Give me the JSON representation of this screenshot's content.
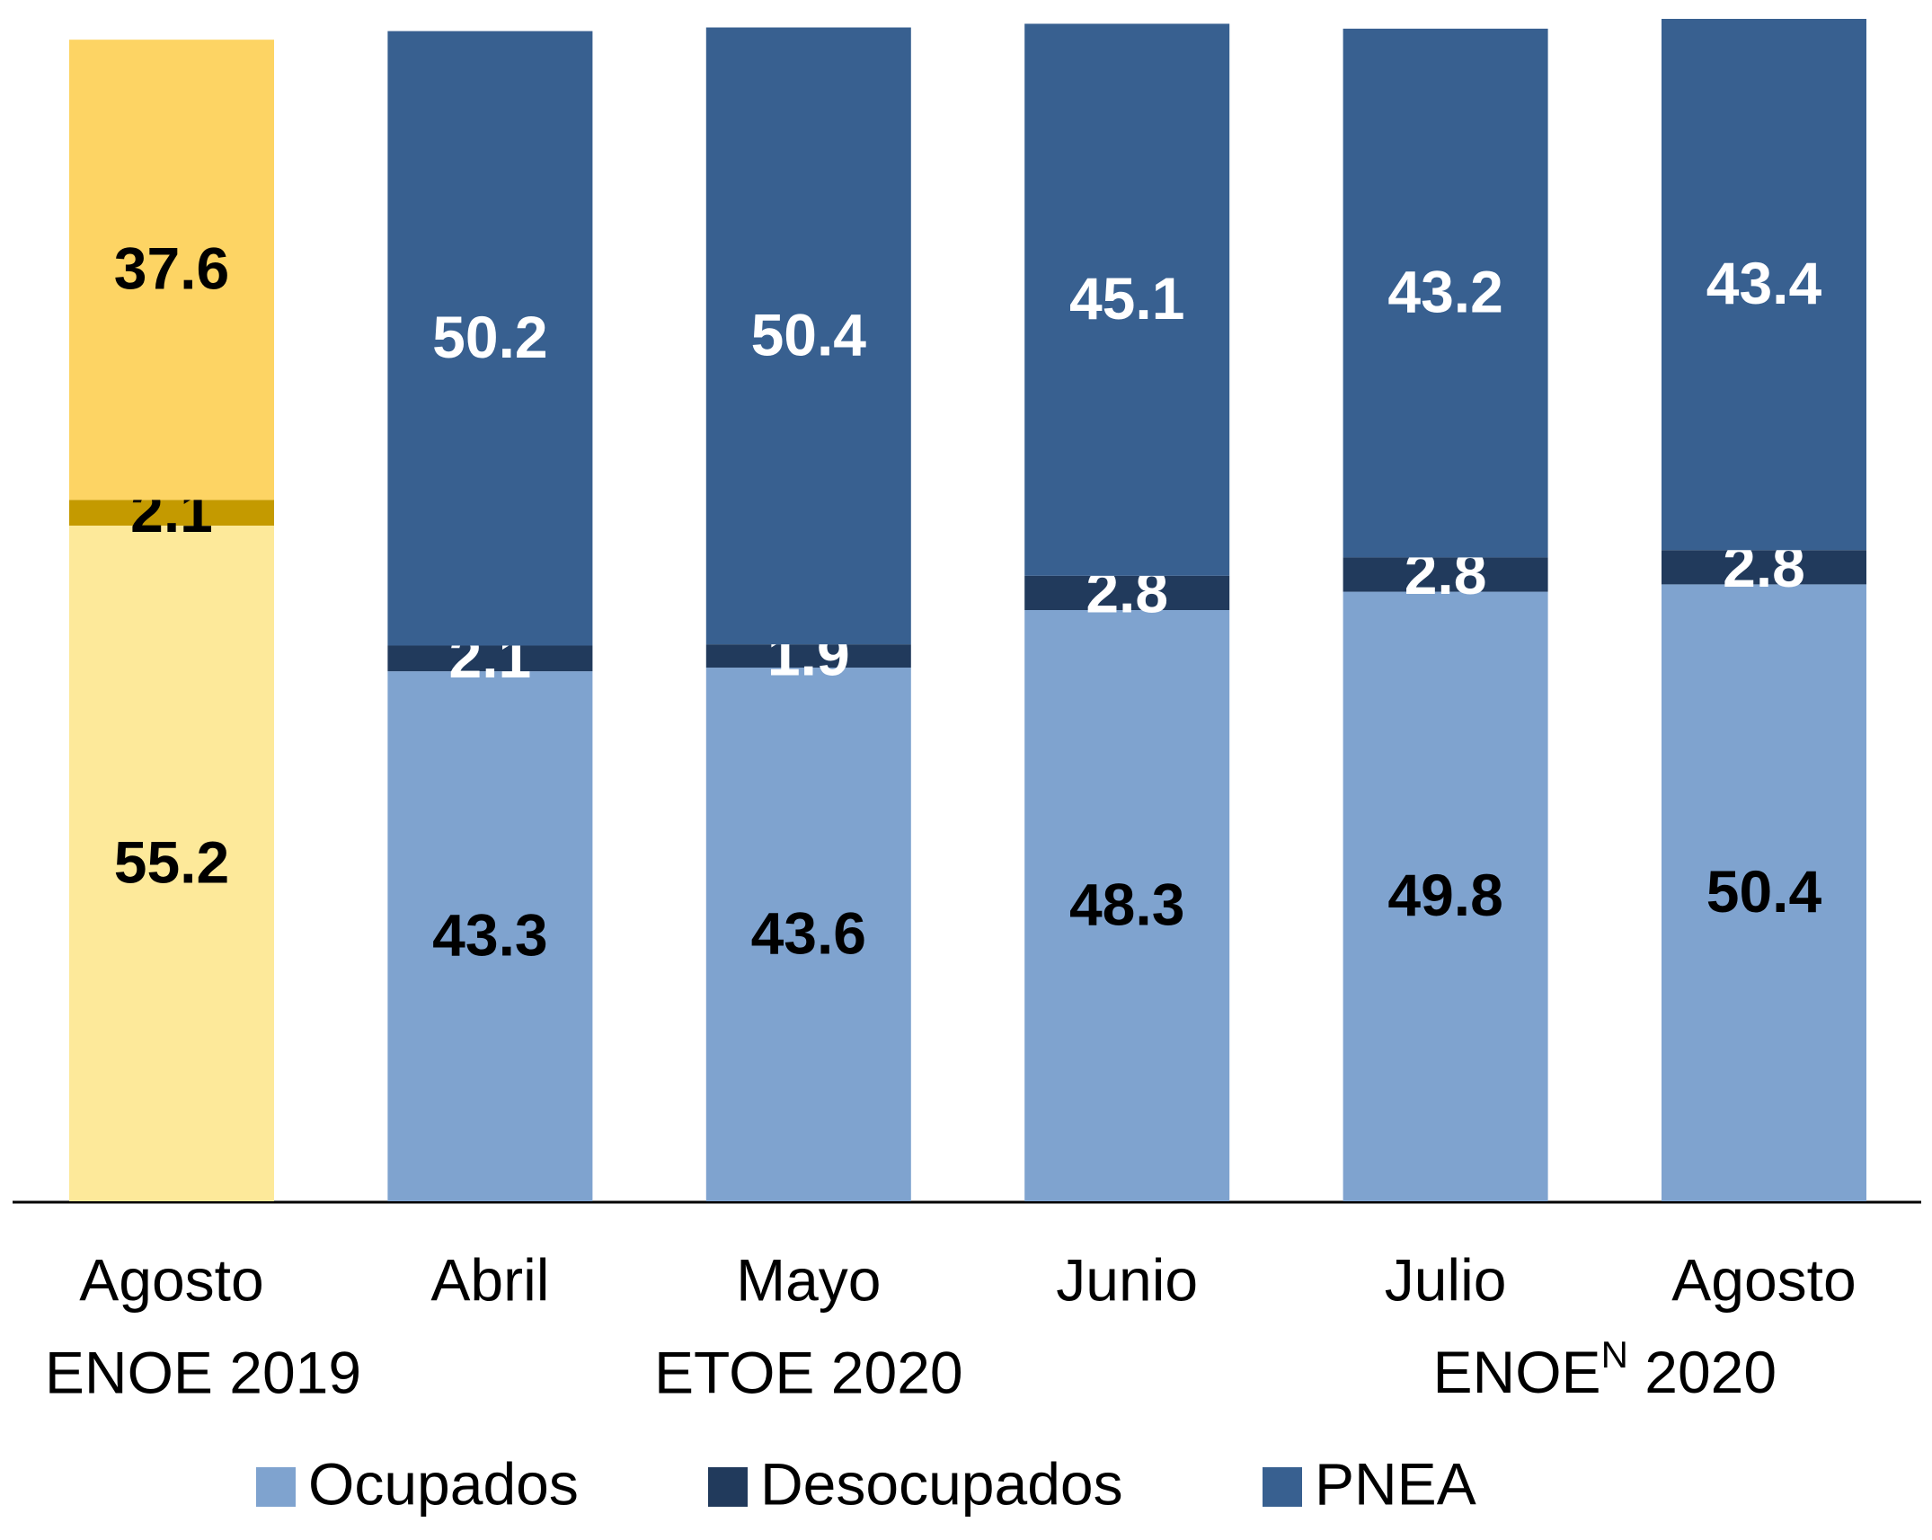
{
  "chart_data": {
    "type": "stacked-bar",
    "categories": [
      "Agosto",
      "Abril",
      "Mayo",
      "Junio",
      "Julio",
      "Agosto"
    ],
    "groups": [
      {
        "label": "ENOE 2019",
        "first": 0,
        "last": 0
      },
      {
        "label": "ETOE 2020",
        "first": 1,
        "last": 3
      },
      {
        "label": {
          "text": "ENOE",
          "sup": "N",
          "rest": " 2020"
        },
        "first": 4,
        "last": 5
      }
    ],
    "series": [
      {
        "name": "Ocupados",
        "color": "#7fa3cf",
        "values": [
          55.2,
          43.3,
          43.6,
          48.3,
          49.8,
          50.4
        ],
        "bar_colors": [
          "#fde99a",
          "#7fa3cf",
          "#7fa3cf",
          "#7fa3cf",
          "#7fa3cf",
          "#7fa3cf"
        ],
        "label_colors": [
          "#000000",
          "#000000",
          "#000000",
          "#000000",
          "#000000",
          "#000000"
        ]
      },
      {
        "name": "Desocupados",
        "color": "#213a5c",
        "values": [
          2.1,
          2.1,
          1.9,
          2.8,
          2.8,
          2.8
        ],
        "bar_colors": [
          "#c49a00",
          "#213a5c",
          "#213a5c",
          "#213a5c",
          "#213a5c",
          "#213a5c"
        ],
        "label_colors": [
          "#000000",
          "#ffffff",
          "#ffffff",
          "#ffffff",
          "#ffffff",
          "#ffffff"
        ]
      },
      {
        "name": "PNEA",
        "color": "#386090",
        "values": [
          37.6,
          50.2,
          50.4,
          45.1,
          43.2,
          43.4
        ],
        "bar_colors": [
          "#fdd464",
          "#386090",
          "#386090",
          "#386090",
          "#386090",
          "#386090"
        ],
        "label_colors": [
          "#000000",
          "#ffffff",
          "#ffffff",
          "#ffffff",
          "#ffffff",
          "#ffffff"
        ]
      }
    ]
  }
}
